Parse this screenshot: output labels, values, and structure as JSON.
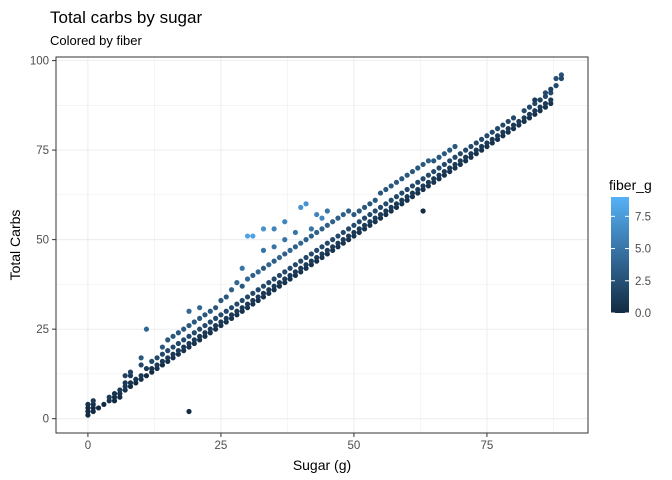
{
  "chart_data": {
    "type": "scatter",
    "title": "Total carbs by sugar",
    "subtitle": "Colored by fiber",
    "xlabel": "Sugar (g)",
    "ylabel": "Total Carbs",
    "xlim": [
      -6,
      94
    ],
    "ylim": [
      -4,
      101
    ],
    "x_ticks": [
      0,
      25,
      50,
      75
    ],
    "y_ticks": [
      0,
      25,
      50,
      75,
      100
    ],
    "grid": true,
    "legend": {
      "title": "fiber_g",
      "placement": "right",
      "min": 0,
      "max": 9,
      "ticks": [
        0,
        2.5,
        5,
        7.5
      ],
      "tick_labels": [
        "0.0",
        "2.5",
        "5.0",
        "7.5"
      ],
      "color_low": "#132b43",
      "color_high": "#56b1f7"
    },
    "points": [
      [
        0,
        1,
        0
      ],
      [
        0,
        2,
        0
      ],
      [
        0,
        3,
        0
      ],
      [
        0,
        4,
        0.5
      ],
      [
        1,
        2,
        0
      ],
      [
        1,
        3,
        0
      ],
      [
        1,
        4,
        0.5
      ],
      [
        1,
        5,
        1
      ],
      [
        2,
        3,
        0
      ],
      [
        3,
        4,
        0
      ],
      [
        4,
        5,
        0.5
      ],
      [
        4,
        6,
        1
      ],
      [
        5,
        5,
        0
      ],
      [
        5,
        6,
        0
      ],
      [
        5,
        7,
        0.5
      ],
      [
        6,
        6,
        0
      ],
      [
        6,
        7,
        0.5
      ],
      [
        6,
        8,
        1
      ],
      [
        7,
        8,
        0.5
      ],
      [
        7,
        9,
        1
      ],
      [
        7,
        10,
        1
      ],
      [
        7,
        12,
        1.5
      ],
      [
        8,
        9,
        0
      ],
      [
        8,
        10,
        0.5
      ],
      [
        8,
        12,
        1
      ],
      [
        8,
        13,
        1.5
      ],
      [
        9,
        10,
        0
      ],
      [
        9,
        11,
        0.5
      ],
      [
        10,
        11,
        0.5
      ],
      [
        10,
        12,
        1
      ],
      [
        10,
        15,
        2
      ],
      [
        10,
        17,
        3
      ],
      [
        11,
        12,
        0
      ],
      [
        11,
        14,
        1
      ],
      [
        11,
        25,
        4
      ],
      [
        12,
        13,
        0
      ],
      [
        12,
        14,
        0.5
      ],
      [
        12,
        16,
        2
      ],
      [
        13,
        14,
        0.5
      ],
      [
        13,
        15,
        1
      ],
      [
        13,
        17,
        2
      ],
      [
        14,
        15,
        0
      ],
      [
        14,
        16,
        1
      ],
      [
        14,
        18,
        2
      ],
      [
        14,
        20,
        3
      ],
      [
        15,
        16,
        0.5
      ],
      [
        15,
        17,
        1
      ],
      [
        15,
        19,
        2
      ],
      [
        15,
        22,
        3
      ],
      [
        16,
        17,
        0.5
      ],
      [
        16,
        18,
        1
      ],
      [
        16,
        20,
        2
      ],
      [
        16,
        23,
        3
      ],
      [
        17,
        18,
        0.5
      ],
      [
        17,
        19,
        1
      ],
      [
        17,
        21,
        2
      ],
      [
        17,
        24,
        3
      ],
      [
        18,
        19,
        0.5
      ],
      [
        18,
        20,
        1
      ],
      [
        18,
        22,
        2
      ],
      [
        18,
        25,
        3
      ],
      [
        19,
        20,
        0.5
      ],
      [
        19,
        21,
        1
      ],
      [
        19,
        23,
        2
      ],
      [
        19,
        2,
        0
      ],
      [
        19,
        26,
        3
      ],
      [
        19,
        30,
        4
      ],
      [
        20,
        21,
        0.5
      ],
      [
        20,
        22,
        1
      ],
      [
        20,
        24,
        2
      ],
      [
        20,
        27,
        3
      ],
      [
        21,
        22,
        0.5
      ],
      [
        21,
        23,
        1
      ],
      [
        21,
        25,
        2
      ],
      [
        21,
        28,
        3
      ],
      [
        21,
        31,
        4
      ],
      [
        22,
        23,
        0.5
      ],
      [
        22,
        24,
        1
      ],
      [
        22,
        26,
        2
      ],
      [
        22,
        29,
        3
      ],
      [
        23,
        24,
        0.5
      ],
      [
        23,
        25,
        1
      ],
      [
        23,
        27,
        2
      ],
      [
        23,
        30,
        3
      ],
      [
        24,
        25,
        0.5
      ],
      [
        24,
        26,
        1
      ],
      [
        24,
        28,
        2
      ],
      [
        24,
        31,
        3
      ],
      [
        25,
        26,
        0.5
      ],
      [
        25,
        27,
        1
      ],
      [
        25,
        29,
        2
      ],
      [
        25,
        33,
        3
      ],
      [
        26,
        27,
        0.5
      ],
      [
        26,
        28,
        1
      ],
      [
        26,
        30,
        2
      ],
      [
        26,
        34,
        3
      ],
      [
        27,
        28,
        0.5
      ],
      [
        27,
        29,
        1
      ],
      [
        27,
        31,
        2
      ],
      [
        27,
        36,
        3.5
      ],
      [
        28,
        29,
        0.5
      ],
      [
        28,
        30,
        1
      ],
      [
        28,
        32,
        2
      ],
      [
        28,
        38,
        4
      ],
      [
        29,
        30,
        0.5
      ],
      [
        29,
        31,
        1
      ],
      [
        29,
        33,
        2
      ],
      [
        29,
        37,
        3
      ],
      [
        29,
        42,
        5
      ],
      [
        30,
        31,
        0.5
      ],
      [
        30,
        32,
        1
      ],
      [
        30,
        34,
        2
      ],
      [
        30,
        39,
        4
      ],
      [
        30,
        51,
        8
      ],
      [
        31,
        32,
        0.5
      ],
      [
        31,
        33,
        1
      ],
      [
        31,
        35,
        2
      ],
      [
        31,
        40,
        3.5
      ],
      [
        31,
        51,
        8
      ],
      [
        32,
        33,
        0.5
      ],
      [
        32,
        34,
        1
      ],
      [
        32,
        36,
        2
      ],
      [
        32,
        41,
        4
      ],
      [
        33,
        34,
        0.5
      ],
      [
        33,
        35,
        1
      ],
      [
        33,
        37,
        2
      ],
      [
        33,
        42,
        3
      ],
      [
        33,
        47,
        5
      ],
      [
        33,
        53,
        7
      ],
      [
        34,
        35,
        0.5
      ],
      [
        34,
        36,
        1
      ],
      [
        34,
        38,
        2
      ],
      [
        34,
        43,
        4
      ],
      [
        35,
        36,
        0.5
      ],
      [
        35,
        37,
        1
      ],
      [
        35,
        39,
        2
      ],
      [
        35,
        44,
        3.5
      ],
      [
        35,
        48,
        5
      ],
      [
        35,
        53,
        6
      ],
      [
        36,
        37,
        0.5
      ],
      [
        36,
        38,
        1
      ],
      [
        36,
        40,
        2
      ],
      [
        36,
        45,
        4
      ],
      [
        37,
        38,
        0.5
      ],
      [
        37,
        39,
        1
      ],
      [
        37,
        41,
        2
      ],
      [
        37,
        46,
        3.5
      ],
      [
        37,
        50,
        5
      ],
      [
        37,
        55,
        6
      ],
      [
        38,
        39,
        0.5
      ],
      [
        38,
        40,
        1
      ],
      [
        38,
        42,
        2
      ],
      [
        38,
        47,
        4
      ],
      [
        39,
        40,
        0.5
      ],
      [
        39,
        41,
        1
      ],
      [
        39,
        43,
        2
      ],
      [
        39,
        48,
        3.5
      ],
      [
        39,
        52,
        5
      ],
      [
        40,
        41,
        0.5
      ],
      [
        40,
        42,
        1
      ],
      [
        40,
        44,
        2
      ],
      [
        40,
        49,
        4
      ],
      [
        40,
        59,
        7
      ],
      [
        41,
        42,
        0.5
      ],
      [
        41,
        43,
        1
      ],
      [
        41,
        45,
        2
      ],
      [
        41,
        50,
        3.5
      ],
      [
        41,
        60,
        7
      ],
      [
        42,
        43,
        0.5
      ],
      [
        42,
        44,
        1
      ],
      [
        42,
        46,
        2
      ],
      [
        42,
        51,
        3.5
      ],
      [
        42,
        53,
        5
      ],
      [
        43,
        44,
        0.5
      ],
      [
        43,
        45,
        1
      ],
      [
        43,
        47,
        2
      ],
      [
        43,
        52,
        3.5
      ],
      [
        43,
        57,
        6
      ],
      [
        44,
        45,
        0.5
      ],
      [
        44,
        46,
        1
      ],
      [
        44,
        48,
        2
      ],
      [
        44,
        53,
        3.5
      ],
      [
        44,
        56,
        6
      ],
      [
        45,
        46,
        0.5
      ],
      [
        45,
        47,
        1
      ],
      [
        45,
        49,
        2
      ],
      [
        45,
        54,
        3.5
      ],
      [
        45,
        58,
        5
      ],
      [
        46,
        47,
        0.5
      ],
      [
        46,
        48,
        1
      ],
      [
        46,
        50,
        2
      ],
      [
        46,
        55,
        3.5
      ],
      [
        47,
        48,
        0.5
      ],
      [
        47,
        49,
        1
      ],
      [
        47,
        51,
        2
      ],
      [
        47,
        56,
        3.5
      ],
      [
        48,
        49,
        0.5
      ],
      [
        48,
        50,
        1
      ],
      [
        48,
        52,
        2
      ],
      [
        48,
        57,
        3.5
      ],
      [
        49,
        50,
        0.5
      ],
      [
        49,
        51,
        1
      ],
      [
        49,
        53,
        2
      ],
      [
        49,
        58,
        3.5
      ],
      [
        50,
        51,
        0.5
      ],
      [
        50,
        52,
        1
      ],
      [
        50,
        54,
        2
      ],
      [
        50,
        57,
        3
      ],
      [
        51,
        52,
        0.5
      ],
      [
        51,
        53,
        1
      ],
      [
        51,
        55,
        2
      ],
      [
        51,
        58,
        3
      ],
      [
        52,
        53,
        0.5
      ],
      [
        52,
        54,
        1
      ],
      [
        52,
        56,
        2
      ],
      [
        52,
        59,
        3
      ],
      [
        53,
        54,
        0.5
      ],
      [
        53,
        55,
        1
      ],
      [
        53,
        57,
        2
      ],
      [
        53,
        60,
        3
      ],
      [
        54,
        55,
        0.5
      ],
      [
        54,
        56,
        1
      ],
      [
        54,
        58,
        2
      ],
      [
        54,
        61,
        3
      ],
      [
        55,
        56,
        0.5
      ],
      [
        55,
        57,
        1
      ],
      [
        55,
        59,
        2
      ],
      [
        55,
        63,
        3
      ],
      [
        56,
        57,
        0.5
      ],
      [
        56,
        58,
        1
      ],
      [
        56,
        60,
        2
      ],
      [
        56,
        64,
        3
      ],
      [
        57,
        58,
        0.5
      ],
      [
        57,
        59,
        1
      ],
      [
        57,
        61,
        2
      ],
      [
        57,
        65,
        3
      ],
      [
        58,
        59,
        0.5
      ],
      [
        58,
        60,
        1
      ],
      [
        58,
        62,
        2
      ],
      [
        58,
        66,
        3
      ],
      [
        59,
        60,
        0.5
      ],
      [
        59,
        61,
        1
      ],
      [
        59,
        63,
        2
      ],
      [
        59,
        67,
        3
      ],
      [
        60,
        61,
        0.5
      ],
      [
        60,
        62,
        1
      ],
      [
        60,
        64,
        2
      ],
      [
        60,
        68,
        3
      ],
      [
        61,
        62,
        0.5
      ],
      [
        61,
        63,
        1
      ],
      [
        61,
        65,
        2
      ],
      [
        61,
        69,
        3
      ],
      [
        62,
        63,
        0.5
      ],
      [
        62,
        64,
        1
      ],
      [
        62,
        66,
        2
      ],
      [
        62,
        70,
        3
      ],
      [
        63,
        58,
        0
      ],
      [
        63,
        64,
        0.5
      ],
      [
        63,
        65,
        1
      ],
      [
        63,
        67,
        2
      ],
      [
        63,
        71,
        3
      ],
      [
        64,
        65,
        0.5
      ],
      [
        64,
        66,
        1
      ],
      [
        64,
        68,
        2
      ],
      [
        64,
        72,
        3.5
      ],
      [
        65,
        66,
        0.5
      ],
      [
        65,
        67,
        1
      ],
      [
        65,
        69,
        2
      ],
      [
        65,
        72,
        3
      ],
      [
        66,
        67,
        0.5
      ],
      [
        66,
        68,
        1
      ],
      [
        66,
        70,
        2
      ],
      [
        66,
        73,
        3
      ],
      [
        67,
        68,
        0.5
      ],
      [
        67,
        69,
        1
      ],
      [
        67,
        71,
        2
      ],
      [
        67,
        74,
        3
      ],
      [
        68,
        69,
        0.5
      ],
      [
        68,
        70,
        1
      ],
      [
        68,
        72,
        2
      ],
      [
        68,
        75,
        3
      ],
      [
        69,
        70,
        0.5
      ],
      [
        69,
        71,
        1
      ],
      [
        69,
        73,
        2
      ],
      [
        69,
        76,
        3
      ],
      [
        70,
        71,
        0.5
      ],
      [
        70,
        72,
        1
      ],
      [
        70,
        74,
        2
      ],
      [
        71,
        72,
        0.5
      ],
      [
        71,
        73,
        1
      ],
      [
        71,
        75,
        2
      ],
      [
        72,
        73,
        0.5
      ],
      [
        72,
        74,
        1
      ],
      [
        72,
        76,
        2
      ],
      [
        73,
        74,
        0.5
      ],
      [
        73,
        75,
        1
      ],
      [
        73,
        77,
        2
      ],
      [
        74,
        75,
        0.5
      ],
      [
        74,
        76,
        1
      ],
      [
        74,
        78,
        2
      ],
      [
        75,
        76,
        0.5
      ],
      [
        75,
        77,
        1
      ],
      [
        75,
        79,
        2
      ],
      [
        76,
        77,
        0.5
      ],
      [
        76,
        78,
        1
      ],
      [
        76,
        80,
        2
      ],
      [
        77,
        78,
        0.5
      ],
      [
        77,
        79,
        1
      ],
      [
        77,
        81,
        2
      ],
      [
        78,
        79,
        0.5
      ],
      [
        78,
        80,
        1
      ],
      [
        78,
        82,
        2
      ],
      [
        79,
        80,
        0.5
      ],
      [
        79,
        81,
        1
      ],
      [
        79,
        83,
        2
      ],
      [
        80,
        81,
        0.5
      ],
      [
        80,
        82,
        1
      ],
      [
        80,
        84,
        2
      ],
      [
        81,
        82,
        0.5
      ],
      [
        81,
        83,
        1
      ],
      [
        82,
        83,
        0.5
      ],
      [
        82,
        84,
        1
      ],
      [
        82,
        86,
        2
      ],
      [
        83,
        84,
        0.5
      ],
      [
        83,
        85,
        1
      ],
      [
        83,
        87,
        2
      ],
      [
        84,
        85,
        0.5
      ],
      [
        84,
        86,
        1
      ],
      [
        84,
        88,
        2
      ],
      [
        85,
        86,
        0.5
      ],
      [
        85,
        87,
        1
      ],
      [
        85,
        89,
        2
      ],
      [
        86,
        87,
        0.5
      ],
      [
        86,
        88,
        1
      ],
      [
        86,
        90,
        2
      ],
      [
        87,
        88,
        0.5
      ],
      [
        87,
        89,
        1
      ],
      [
        87,
        91,
        2
      ],
      [
        88,
        93,
        2
      ],
      [
        88,
        95,
        2.5
      ],
      [
        89,
        96,
        2.5
      ],
      [
        89,
        95,
        2
      ],
      [
        84,
        89,
        1
      ],
      [
        85,
        89,
        1.5
      ],
      [
        86,
        91,
        2
      ],
      [
        87,
        92,
        1.5
      ]
    ]
  }
}
